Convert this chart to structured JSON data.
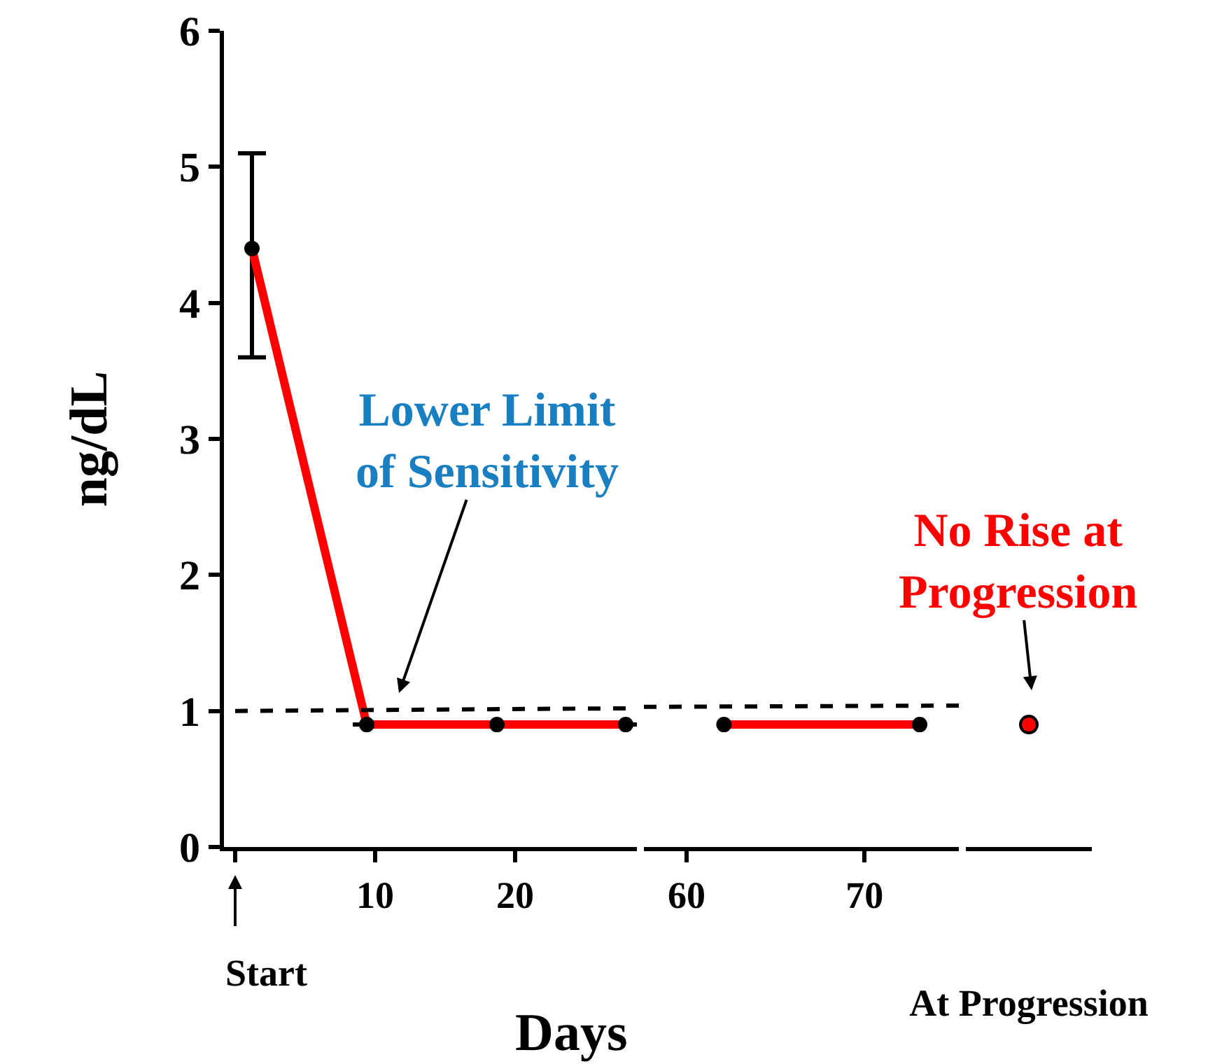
{
  "chart_data": [
    {
      "type": "line",
      "xlabel": "Days",
      "ylabel": "ng/dL",
      "xlim": [
        -0.8,
        28.7
      ],
      "xticks": [
        {
          "value": 0,
          "label": null
        },
        10,
        20
      ],
      "ylim": [
        0,
        6
      ],
      "yticks": [
        0,
        1,
        2,
        3,
        4,
        5,
        6
      ],
      "series": [
        {
          "color": "#ff0000",
          "x": [
            1.2,
            9.4,
            18.7,
            27.9
          ],
          "values": [
            4.4,
            0.9,
            0.9,
            0.9
          ],
          "errors": [
            [
              3.6,
              5.1
            ],
            null,
            null,
            null
          ],
          "marker": "circle",
          "line_style": "solid"
        },
        {
          "color": "#000000",
          "x": [
            0,
            28.7
          ],
          "values": [
            1.0,
            1.02
          ],
          "marker": "none",
          "line_style": "dashed"
        }
      ],
      "annotations": [
        "Lower Limit\nof Sensitivity",
        "No Rise at\nProgression",
        "Start"
      ],
      "grid": false
    },
    {
      "type": "line",
      "xlim": [
        57.6,
        75.3
      ],
      "xticks": [
        60,
        70
      ],
      "ylim": [
        0,
        6
      ],
      "tick_labels": "x",
      "series": [
        {
          "color": "#ff0000",
          "x": [
            62.1,
            73.1
          ],
          "values": [
            0.9,
            0.9
          ],
          "marker": "circle",
          "line_style": "solid"
        },
        {
          "color": "#000000",
          "x": [
            57.6,
            75.3
          ],
          "values": [
            1.03,
            1.04
          ],
          "marker": "none",
          "line_style": "dashed"
        }
      ],
      "grid": false
    },
    {
      "type": "line",
      "categories": [
        "At Progression"
      ],
      "ylim": [
        0,
        6
      ],
      "tick_labels": "x",
      "series": [
        {
          "color": "#ff0000",
          "values": [
            0.9
          ],
          "marker": "circle",
          "line_style": "solid"
        }
      ],
      "grid": false
    }
  ]
}
